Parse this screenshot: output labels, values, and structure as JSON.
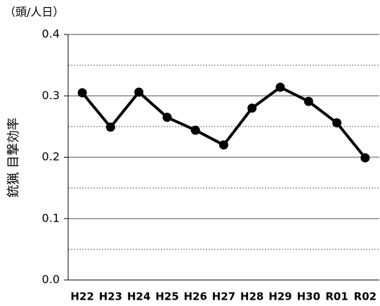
{
  "chart_data": {
    "type": "line",
    "unit_label": "（頭/人日）",
    "y_label": "銃猟 目撃効率",
    "categories": [
      "H22",
      "H23",
      "H24",
      "H25",
      "H26",
      "H27",
      "H28",
      "H29",
      "H30",
      "R01",
      "R02"
    ],
    "series": [
      {
        "color": "#000000",
        "values": [
          0.305,
          0.249,
          0.306,
          0.265,
          0.244,
          0.22,
          0.28,
          0.314,
          0.291,
          0.256,
          0.199
        ]
      }
    ],
    "ylim": [
      0,
      0.4
    ],
    "yticks": [
      {
        "value": 0,
        "label": "0.0"
      },
      0.1,
      0.2,
      0.3,
      0.4
    ],
    "minor_gridlines": [
      0.05,
      0.15,
      0.25,
      0.35
    ],
    "grid": true
  }
}
